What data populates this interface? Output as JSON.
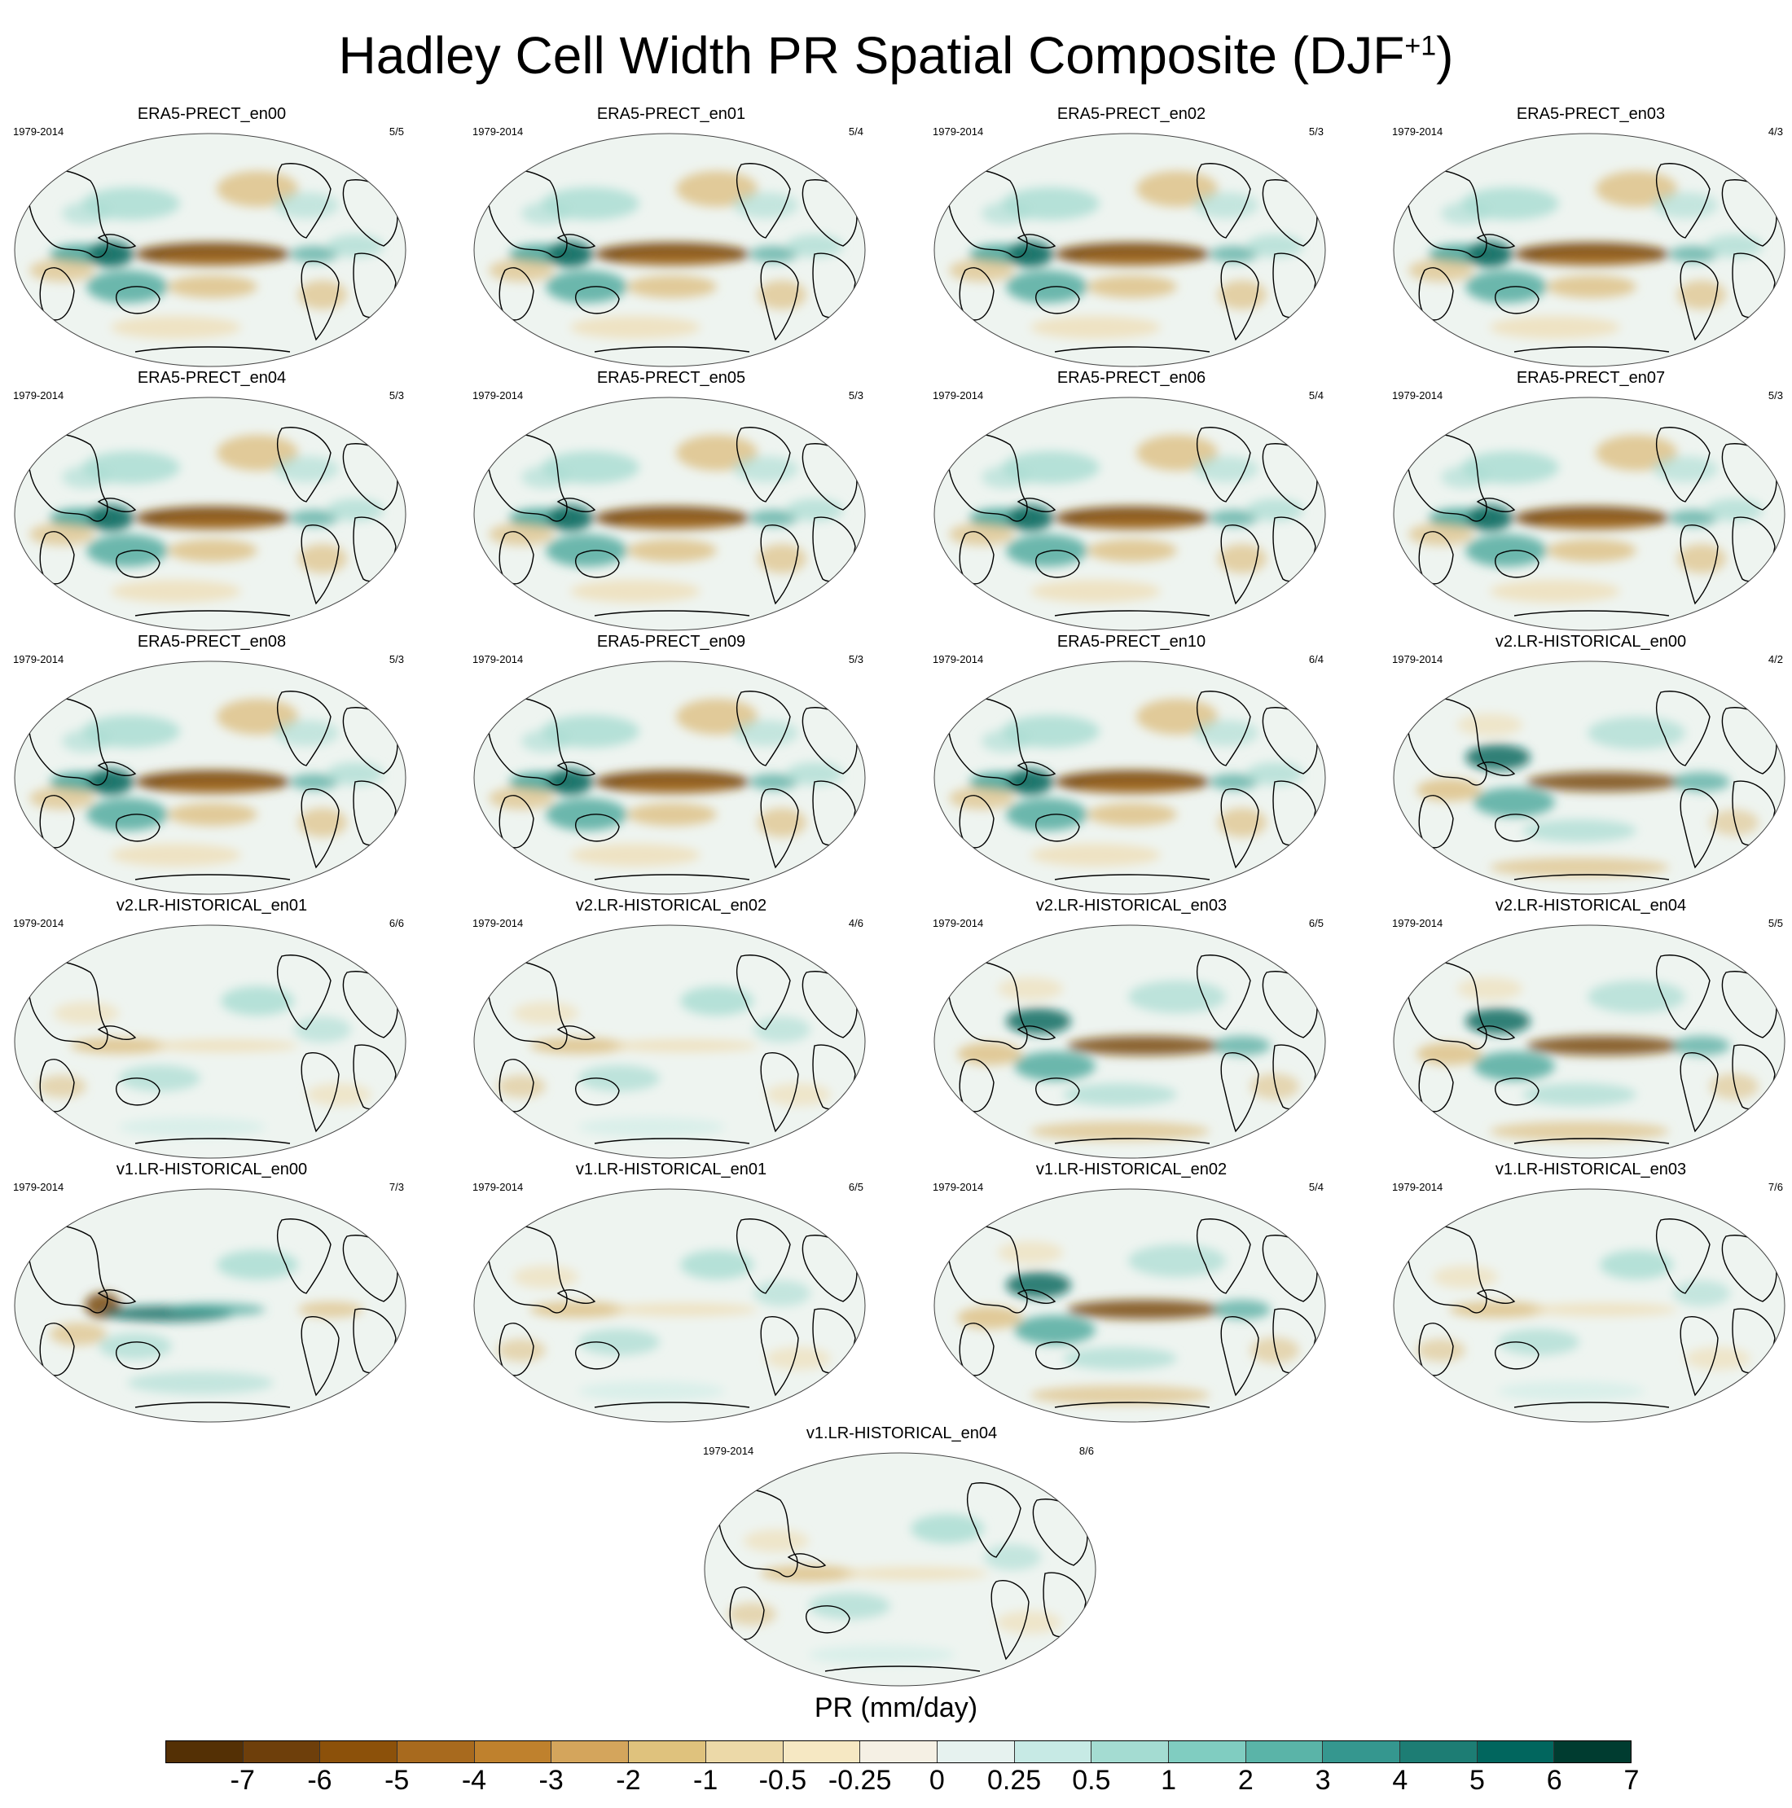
{
  "title": {
    "text": "Hadley Cell Width PR Spatial Composite (DJF",
    "sup": "+1",
    "close": ")"
  },
  "panels": [
    {
      "name": "ERA5-PRECT_en00",
      "period": "1979-2014",
      "count": "5/5",
      "style": "era"
    },
    {
      "name": "ERA5-PRECT_en01",
      "period": "1979-2014",
      "count": "5/4",
      "style": "era"
    },
    {
      "name": "ERA5-PRECT_en02",
      "period": "1979-2014",
      "count": "5/3",
      "style": "era"
    },
    {
      "name": "ERA5-PRECT_en03",
      "period": "1979-2014",
      "count": "4/3",
      "style": "era"
    },
    {
      "name": "ERA5-PRECT_en04",
      "period": "1979-2014",
      "count": "5/3",
      "style": "era"
    },
    {
      "name": "ERA5-PRECT_en05",
      "period": "1979-2014",
      "count": "5/3",
      "style": "era"
    },
    {
      "name": "ERA5-PRECT_en06",
      "period": "1979-2014",
      "count": "5/4",
      "style": "era"
    },
    {
      "name": "ERA5-PRECT_en07",
      "period": "1979-2014",
      "count": "5/3",
      "style": "era"
    },
    {
      "name": "ERA5-PRECT_en08",
      "period": "1979-2014",
      "count": "5/3",
      "style": "era"
    },
    {
      "name": "ERA5-PRECT_en09",
      "period": "1979-2014",
      "count": "5/3",
      "style": "era"
    },
    {
      "name": "ERA5-PRECT_en10",
      "period": "1979-2014",
      "count": "6/4",
      "style": "era"
    },
    {
      "name": "v2.LR-HISTORICAL_en00",
      "period": "1979-2014",
      "count": "4/2",
      "style": "strong"
    },
    {
      "name": "v2.LR-HISTORICAL_en01",
      "period": "1979-2014",
      "count": "6/6",
      "style": "weak"
    },
    {
      "name": "v2.LR-HISTORICAL_en02",
      "period": "1979-2014",
      "count": "4/6",
      "style": "weak"
    },
    {
      "name": "v2.LR-HISTORICAL_en03",
      "period": "1979-2014",
      "count": "6/5",
      "style": "strong"
    },
    {
      "name": "v2.LR-HISTORICAL_en04",
      "period": "1979-2014",
      "count": "5/5",
      "style": "strong"
    },
    {
      "name": "v1.LR-HISTORICAL_en00",
      "period": "1979-2014",
      "count": "7/3",
      "style": "wet"
    },
    {
      "name": "v1.LR-HISTORICAL_en01",
      "period": "1979-2014",
      "count": "6/5",
      "style": "weak"
    },
    {
      "name": "v1.LR-HISTORICAL_en02",
      "period": "1979-2014",
      "count": "5/4",
      "style": "strong"
    },
    {
      "name": "v1.LR-HISTORICAL_en03",
      "period": "1979-2014",
      "count": "7/6",
      "style": "weak"
    },
    {
      "name": "v1.LR-HISTORICAL_en04",
      "period": "1979-2014",
      "count": "8/6",
      "style": "weak"
    }
  ],
  "colorbar": {
    "title": "PR (mm/day)",
    "labels": [
      "-7",
      "-6",
      "-5",
      "-4",
      "-3",
      "-2",
      "-1",
      "-0.5",
      "-0.25",
      "0",
      "0.25",
      "0.5",
      "1",
      "2",
      "3",
      "4",
      "5",
      "6",
      "7"
    ],
    "colors": [
      "#543005",
      "#6e3f0b",
      "#8c510a",
      "#a86a1e",
      "#bf812d",
      "#d4a55c",
      "#dfc27d",
      "#ecd9a8",
      "#f6e8c3",
      "#f5f0e4",
      "#e6f2ef",
      "#c7eae5",
      "#a4dcd2",
      "#80cdc1",
      "#5ab4a8",
      "#35978f",
      "#1d7d74",
      "#01665e",
      "#003c30"
    ]
  }
}
